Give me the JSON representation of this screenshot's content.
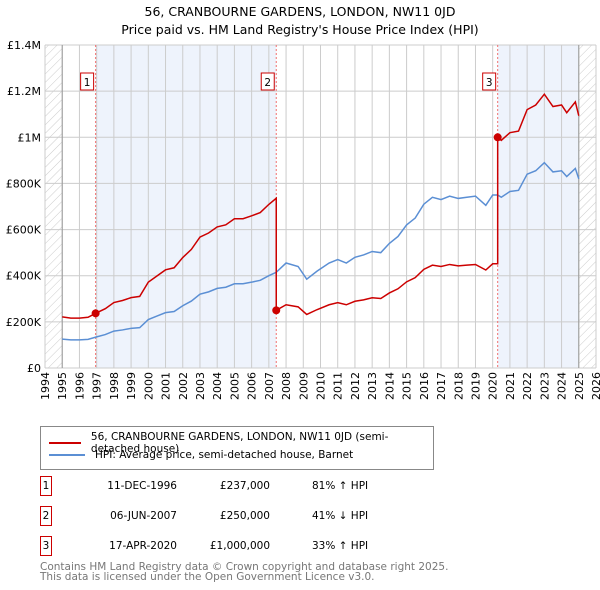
{
  "chart_data": {
    "type": "line",
    "title": "56, CRANBOURNE GARDENS, LONDON, NW11 0JD",
    "subtitle": "Price paid vs. HM Land Registry's House Price Index (HPI)",
    "xlim": [
      1994,
      2026
    ],
    "ylim": [
      0,
      1400000
    ],
    "x_ticks": [
      "1994",
      "1995",
      "1996",
      "1997",
      "1998",
      "1999",
      "2000",
      "2001",
      "2002",
      "2003",
      "2004",
      "2005",
      "2006",
      "2007",
      "2008",
      "2009",
      "2010",
      "2011",
      "2012",
      "2013",
      "2014",
      "2015",
      "2016",
      "2017",
      "2018",
      "2019",
      "2020",
      "2021",
      "2022",
      "2023",
      "2024",
      "2025",
      "2026"
    ],
    "y_ticks": [
      {
        "v": 0,
        "label": "£0"
      },
      {
        "v": 200000,
        "label": "£200K"
      },
      {
        "v": 400000,
        "label": "£400K"
      },
      {
        "v": 600000,
        "label": "£600K"
      },
      {
        "v": 800000,
        "label": "£800K"
      },
      {
        "v": 1000000,
        "label": "£1M"
      },
      {
        "v": 1200000,
        "label": "£1.2M"
      },
      {
        "v": 1400000,
        "label": "£1.4M"
      }
    ],
    "grid": true,
    "data_range": [
      1995,
      2025
    ],
    "series": [
      {
        "name": "56, CRANBOURNE GARDENS, LONDON, NW11 0JD (semi-detached house)",
        "color": "#cc0000",
        "derived_from": "hpi scaled at each sale"
      },
      {
        "name": "HPI: Average price, semi-detached house, Barnet",
        "color": "#5b8fd4",
        "x": [
          1995,
          1995.5,
          1996,
          1996.5,
          1997,
          1997.5,
          1998,
          1998.5,
          1999,
          1999.5,
          2000,
          2000.5,
          2001,
          2001.5,
          2002,
          2002.5,
          2003,
          2003.5,
          2004,
          2004.5,
          2005,
          2005.5,
          2006,
          2006.5,
          2007,
          2007.43,
          2008,
          2008.7,
          2009.2,
          2009.8,
          2010.5,
          2011,
          2011.5,
          2012,
          2012.5,
          2013,
          2013.5,
          2014,
          2014.5,
          2015,
          2015.5,
          2016,
          2016.5,
          2017,
          2017.5,
          2018,
          2018.5,
          2019,
          2019.6,
          2020,
          2020.29,
          2020.5,
          2021,
          2021.5,
          2022,
          2022.5,
          2023,
          2023.5,
          2024,
          2024.3,
          2024.8,
          2025
        ],
        "y": [
          125000,
          122000,
          122000,
          124000,
          135000,
          145000,
          160000,
          165000,
          172000,
          175000,
          210000,
          225000,
          240000,
          245000,
          270000,
          290000,
          320000,
          330000,
          345000,
          350000,
          365000,
          365000,
          372000,
          380000,
          400000,
          415000,
          455000,
          440000,
          385000,
          420000,
          455000,
          470000,
          455000,
          480000,
          490000,
          505000,
          500000,
          540000,
          570000,
          620000,
          650000,
          710000,
          740000,
          730000,
          745000,
          735000,
          740000,
          745000,
          705000,
          750000,
          750000,
          740000,
          765000,
          770000,
          840000,
          855000,
          890000,
          850000,
          855000,
          830000,
          865000,
          820000
        ]
      }
    ],
    "sales": [
      {
        "label": "1",
        "x": 1996.94,
        "price": 237000
      },
      {
        "label": "2",
        "x": 2007.43,
        "price": 250000
      },
      {
        "label": "3",
        "x": 2020.29,
        "price": 1000000
      }
    ]
  },
  "legend": {
    "property": "56, CRANBOURNE GARDENS, LONDON, NW11 0JD (semi-detached house)",
    "hpi": "HPI: Average price, semi-detached house, Barnet"
  },
  "sales_table": [
    {
      "num": "1",
      "date": "11-DEC-1996",
      "price": "£237,000",
      "hpi": "81% ↑ HPI"
    },
    {
      "num": "2",
      "date": "06-JUN-2007",
      "price": "£250,000",
      "hpi": "41% ↓ HPI"
    },
    {
      "num": "3",
      "date": "17-APR-2020",
      "price": "£1,000,000",
      "hpi": "33% ↑ HPI"
    }
  ],
  "footer": {
    "line1": "Contains HM Land Registry data © Crown copyright and database right 2025.",
    "line2": "This data is licensed under the Open Government Licence v3.0."
  }
}
